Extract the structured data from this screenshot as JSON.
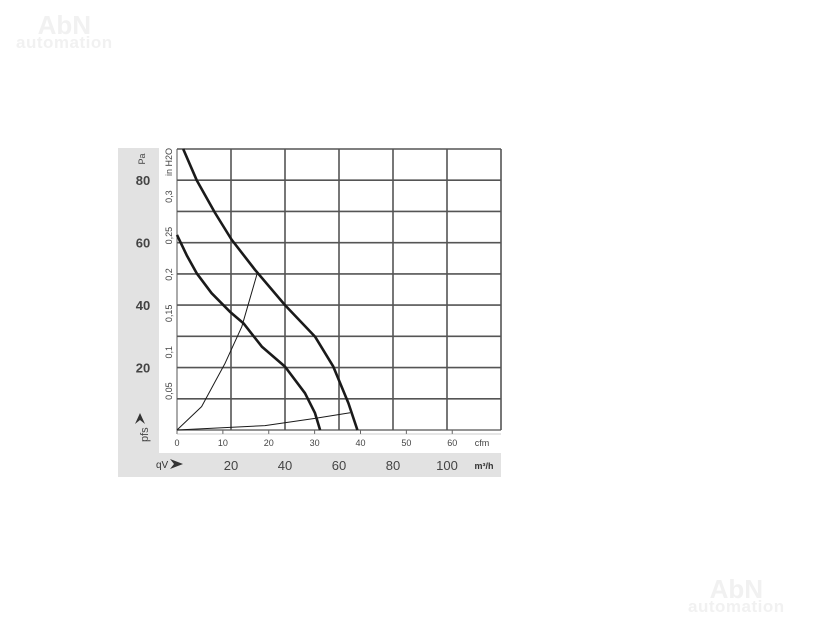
{
  "watermarks": [
    {
      "line1": "AbN",
      "line2": "automation"
    },
    {
      "line1": "AbN",
      "line2": "automation"
    }
  ],
  "chart_data": {
    "type": "line",
    "title": "",
    "xlabel": "qV",
    "x_unit": "m³/h",
    "x2_unit": "cfm",
    "ylabel": "pfs",
    "y_unit": "Pa",
    "y2_unit": "in H2O",
    "xlim": [
      0,
      120
    ],
    "ylim": [
      0,
      90
    ],
    "x_ticks": [
      "20",
      "40",
      "60",
      "80",
      "100"
    ],
    "x2_ticks": [
      "0",
      "10",
      "20",
      "30",
      "40",
      "50",
      "60"
    ],
    "y_ticks": [
      "20",
      "40",
      "60",
      "80"
    ],
    "y2_ticks": [
      "0,05",
      "0,1",
      "0,15",
      "0,2",
      "0,25",
      "0,3"
    ],
    "grid": true,
    "colors": {
      "curve": "#1a1a1a",
      "grid": "#555555",
      "band": "#e2e2e2"
    },
    "series": [
      {
        "values": [
          [
            2.3,
            90
          ],
          [
            7.3,
            80
          ],
          [
            14.1,
            69.5
          ],
          [
            20.2,
            61
          ],
          [
            28.9,
            51.3
          ],
          [
            40,
            40
          ],
          [
            51.1,
            29.9
          ],
          [
            57.9,
            20.3
          ],
          [
            63.5,
            8.6
          ],
          [
            66.8,
            0
          ]
        ],
        "style": "bold"
      },
      {
        "values": [
          [
            0,
            62.5
          ],
          [
            3.6,
            56
          ],
          [
            7.3,
            50.2
          ],
          [
            12.8,
            43.8
          ],
          [
            19.6,
            37.9
          ],
          [
            24.6,
            34.2
          ],
          [
            31.4,
            26.7
          ],
          [
            40,
            20.3
          ],
          [
            47.4,
            11.8
          ],
          [
            51.1,
            5.4
          ],
          [
            53,
            0
          ]
        ],
        "style": "bold"
      },
      {
        "values": [
          [
            0,
            0
          ],
          [
            9.1,
            7.5
          ],
          [
            17.8,
            21.4
          ],
          [
            24,
            33.1
          ],
          [
            29.9,
            50.7
          ]
        ],
        "style": "thin"
      },
      {
        "values": [
          [
            0,
            0
          ],
          [
            32.6,
            1.4
          ],
          [
            51.1,
            3.7
          ],
          [
            64.1,
            5.5
          ]
        ],
        "style": "thin"
      }
    ]
  }
}
